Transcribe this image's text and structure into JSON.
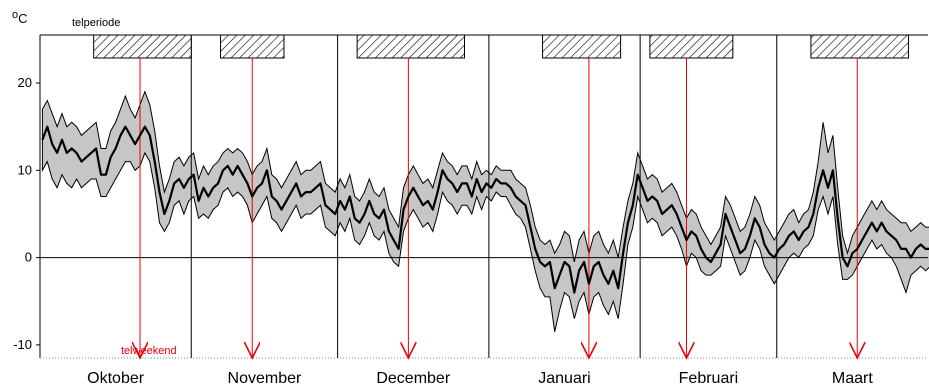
{
  "chart_data": {
    "type": "area",
    "unit_label": "°C",
    "unit_sup": "o",
    "unit_main": "C",
    "y_ticks": [
      20,
      10,
      0,
      -10
    ],
    "ylim": [
      -11.5,
      25.5
    ],
    "months": [
      "Oktober",
      "November",
      "December",
      "Januari",
      "Februari",
      "Maart"
    ],
    "month_days": [
      31,
      30,
      31,
      31,
      28,
      31
    ],
    "count_period_label": "telperiode",
    "count_weekend_label": "telweekend",
    "count_periods": [
      {
        "month": "Oktober",
        "start_day": 12,
        "end_day": 31
      },
      {
        "month": "November",
        "start_day": 7,
        "end_day": 19
      },
      {
        "month": "December",
        "start_day": 5,
        "end_day": 26
      },
      {
        "month": "Januari",
        "start_day": 12,
        "end_day": 27
      },
      {
        "month": "Februari",
        "start_day": 3,
        "end_day": 19
      },
      {
        "month": "Maart",
        "start_day": 8,
        "end_day": 27
      }
    ],
    "count_weekends": [
      {
        "month": "Oktober",
        "day": 21
      },
      {
        "month": "November",
        "day": 13
      },
      {
        "month": "December",
        "day": 15
      },
      {
        "month": "Januari",
        "day": 21
      },
      {
        "month": "Februari",
        "day": 10
      },
      {
        "month": "Maart",
        "day": 17
      }
    ],
    "series": [
      {
        "name": "",
        "mean": [
          13.5,
          15.0,
          13.0,
          12.0,
          13.5,
          12.0,
          12.5,
          12.0,
          11.0,
          11.5,
          12.0,
          12.5,
          9.5,
          9.5,
          11.5,
          12.5,
          14.0,
          15.0,
          14.0,
          13.0,
          14.0,
          15.0,
          14.0,
          11.0,
          7.5,
          5.0,
          6.5,
          8.5,
          9.0,
          8.0,
          9.0,
          9.5,
          6.5,
          8.0,
          7.0,
          8.0,
          8.5,
          10.0,
          10.5,
          9.5,
          10.5,
          9.5,
          8.5,
          7.0,
          8.0,
          8.5,
          10.0,
          7.0,
          6.5,
          5.5,
          6.5,
          7.5,
          8.5,
          7.0,
          7.5,
          7.5,
          8.0,
          8.5,
          6.0,
          5.5,
          5.0,
          6.5,
          5.5,
          7.0,
          4.5,
          4.0,
          5.0,
          6.5,
          5.0,
          4.5,
          5.5,
          3.0,
          2.0,
          1.0,
          5.5,
          7.0,
          8.0,
          7.0,
          6.0,
          6.5,
          5.5,
          7.5,
          10.0,
          9.0,
          8.5,
          7.5,
          8.5,
          8.5,
          7.0,
          9.0,
          7.5,
          8.5,
          8.0,
          9.0,
          8.5,
          8.5,
          8.0,
          7.0,
          6.5,
          6.0,
          3.5,
          1.0,
          -0.5,
          -1.0,
          -0.5,
          -3.5,
          -2.0,
          -0.5,
          -1.0,
          -4.0,
          -1.5,
          -0.5,
          -3.0,
          -1.0,
          -0.5,
          -2.0,
          -3.0,
          -1.5,
          -3.5,
          0.5,
          4.0,
          6.0,
          9.5,
          8.0,
          6.5,
          7.0,
          6.5,
          5.0,
          5.5,
          6.0,
          5.0,
          3.5,
          2.0,
          3.0,
          2.5,
          1.0,
          0.0,
          -0.5,
          0.5,
          1.5,
          5.0,
          3.5,
          2.0,
          0.5,
          1.0,
          2.5,
          4.5,
          3.5,
          1.5,
          0.5,
          0.0,
          1.0,
          1.5,
          2.5,
          3.0,
          2.0,
          3.0,
          3.5,
          5.0,
          8.0,
          10.0,
          8.0,
          10.0,
          4.5,
          0.0,
          -1.0,
          0.5,
          1.0,
          2.0,
          3.0,
          4.0,
          3.0,
          4.0,
          3.0,
          2.5,
          2.0,
          1.0,
          1.0,
          0.0,
          1.0,
          1.5,
          1.0,
          1.0,
          1.5,
          2.0
        ],
        "min": [
          10.0,
          11.0,
          9.0,
          8.0,
          9.5,
          8.5,
          8.0,
          9.0,
          8.0,
          8.5,
          9.0,
          9.0,
          7.0,
          7.0,
          8.0,
          9.0,
          10.0,
          11.0,
          11.0,
          10.0,
          10.5,
          12.0,
          11.0,
          8.0,
          4.0,
          3.0,
          4.0,
          6.0,
          6.5,
          5.0,
          6.5,
          7.0,
          4.5,
          5.0,
          4.5,
          5.5,
          6.0,
          7.5,
          8.0,
          7.0,
          7.5,
          7.0,
          6.0,
          4.0,
          5.0,
          6.0,
          7.0,
          4.5,
          4.0,
          3.0,
          4.0,
          5.0,
          6.0,
          4.5,
          5.0,
          5.0,
          5.5,
          6.0,
          3.5,
          3.0,
          2.5,
          4.0,
          3.0,
          4.5,
          2.0,
          1.5,
          2.5,
          4.0,
          2.5,
          2.0,
          3.0,
          0.5,
          -0.5,
          -1.0,
          3.0,
          4.5,
          5.5,
          4.5,
          3.5,
          4.0,
          3.0,
          5.0,
          7.5,
          6.5,
          6.0,
          5.0,
          6.0,
          6.0,
          5.0,
          7.0,
          5.5,
          7.0,
          6.5,
          7.5,
          7.0,
          7.0,
          6.0,
          5.0,
          4.5,
          3.5,
          1.0,
          -1.5,
          -3.5,
          -4.5,
          -4.5,
          -8.5,
          -6.0,
          -4.0,
          -4.5,
          -7.0,
          -5.0,
          -4.0,
          -6.5,
          -4.5,
          -4.0,
          -5.5,
          -6.5,
          -5.0,
          -7.0,
          -3.0,
          1.5,
          3.5,
          7.0,
          5.5,
          4.0,
          4.5,
          4.0,
          2.5,
          3.0,
          3.5,
          2.5,
          1.0,
          -1.0,
          0.5,
          0.0,
          -1.5,
          -2.0,
          -2.0,
          -1.5,
          -1.0,
          2.5,
          1.0,
          -0.5,
          -2.0,
          -1.5,
          0.0,
          2.0,
          1.0,
          -1.0,
          -2.0,
          -3.0,
          -2.0,
          -1.0,
          0.0,
          0.5,
          0.0,
          1.0,
          1.5,
          2.5,
          5.5,
          7.0,
          5.0,
          7.0,
          1.5,
          -2.5,
          -2.5,
          -2.0,
          -1.0,
          0.0,
          1.0,
          2.0,
          1.0,
          1.5,
          0.5,
          0.0,
          -1.0,
          -2.5,
          -4.0,
          -2.0,
          -1.5,
          -1.0,
          -1.5,
          -1.0,
          -0.5,
          0.0
        ],
        "max": [
          17.0,
          18.0,
          16.5,
          15.0,
          16.5,
          15.0,
          15.5,
          15.0,
          14.0,
          14.5,
          15.0,
          15.5,
          12.5,
          12.5,
          14.5,
          15.5,
          17.0,
          18.5,
          17.0,
          16.0,
          17.5,
          19.0,
          17.5,
          14.5,
          10.5,
          7.5,
          9.0,
          11.0,
          11.5,
          10.5,
          11.5,
          12.0,
          9.0,
          10.5,
          9.5,
          10.5,
          11.0,
          12.0,
          12.5,
          12.0,
          12.5,
          12.0,
          11.0,
          9.5,
          10.5,
          11.0,
          12.5,
          9.5,
          9.0,
          8.0,
          9.0,
          10.0,
          11.0,
          9.5,
          10.0,
          10.0,
          10.5,
          11.0,
          8.5,
          8.0,
          7.5,
          9.0,
          8.0,
          9.5,
          7.0,
          6.5,
          7.5,
          9.0,
          7.5,
          7.0,
          8.0,
          5.5,
          4.5,
          3.5,
          8.0,
          9.5,
          10.5,
          9.5,
          8.5,
          9.0,
          8.0,
          10.0,
          12.0,
          11.0,
          10.5,
          9.5,
          10.5,
          10.5,
          9.0,
          11.0,
          9.5,
          10.0,
          9.5,
          10.5,
          10.0,
          10.0,
          10.0,
          9.0,
          8.5,
          8.0,
          6.0,
          3.5,
          2.0,
          1.5,
          2.0,
          0.5,
          1.5,
          3.0,
          2.5,
          -0.5,
          2.0,
          3.0,
          0.5,
          2.5,
          3.0,
          1.5,
          0.5,
          2.0,
          0.0,
          3.5,
          6.5,
          8.5,
          12.0,
          10.5,
          9.0,
          9.5,
          9.0,
          7.5,
          8.0,
          8.5,
          7.5,
          6.0,
          4.5,
          5.5,
          5.0,
          3.5,
          2.5,
          1.5,
          2.5,
          3.5,
          7.0,
          6.0,
          4.5,
          3.0,
          3.5,
          5.0,
          7.0,
          6.0,
          4.0,
          3.0,
          2.0,
          3.0,
          4.0,
          5.0,
          5.5,
          4.0,
          5.0,
          5.5,
          7.5,
          11.0,
          15.5,
          12.0,
          14.0,
          8.0,
          2.5,
          0.5,
          2.5,
          3.5,
          4.5,
          5.5,
          6.5,
          5.5,
          6.5,
          5.5,
          5.0,
          4.5,
          4.0,
          4.0,
          3.0,
          3.5,
          4.0,
          3.5,
          3.5,
          4.0,
          4.5
        ]
      }
    ]
  }
}
